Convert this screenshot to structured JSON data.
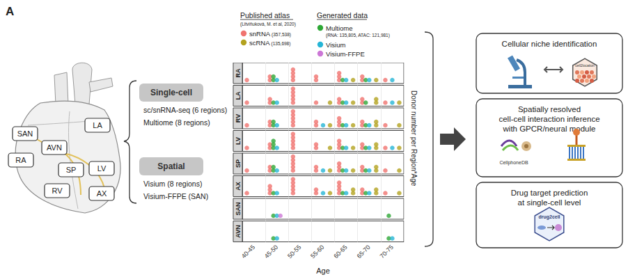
{
  "panel_label": "A",
  "heart": {
    "labels": [
      "SAN",
      "LA",
      "AVN",
      "RA",
      "SP",
      "LV",
      "RV",
      "AX"
    ]
  },
  "modalities": [
    {
      "title": "Single-cell",
      "lines": [
        "sc/snRNA-seq (6 regions)",
        "Multiome (8 regions)"
      ]
    },
    {
      "title": "Spatial",
      "lines": [
        "Visium (8 regions)",
        "Visium-FFPE (SAN)"
      ]
    }
  ],
  "chart_data": {
    "type": "dot",
    "legend_groups": [
      {
        "title": "Published atlas",
        "subtitle": "(Litviňuková, M. et al, 2020)"
      },
      {
        "title": "Generated data"
      }
    ],
    "categories": [
      "40-45",
      "45-50",
      "50-55",
      "55-60",
      "60-65",
      "65-70",
      "70-75"
    ],
    "facets": [
      "RA",
      "LA",
      "RV",
      "LV",
      "SP",
      "AX",
      "SAN",
      "AVN"
    ],
    "x_label": "Age",
    "y_label": "Donor number per Region*Age",
    "ylim": [
      0,
      6
    ],
    "tick_labels": "x",
    "grid": true,
    "series": [
      {
        "name": "snRNA",
        "detail": "(357,538)",
        "group": "Published atlas",
        "color": "#f0736f",
        "values": [
          [
            1,
            2,
            4,
            2,
            3,
            2,
            1
          ],
          [
            1,
            2,
            5,
            1,
            2,
            2,
            1
          ],
          [
            1,
            2,
            5,
            2,
            3,
            2,
            1
          ],
          [
            1,
            2,
            5,
            2,
            3,
            2,
            1
          ],
          [
            1,
            2,
            5,
            2,
            3,
            2,
            1
          ],
          [
            1,
            3,
            5,
            2,
            4,
            2,
            1
          ],
          [
            0,
            0,
            0,
            0,
            0,
            0,
            0
          ],
          [
            0,
            0,
            0,
            0,
            0,
            0,
            0
          ]
        ]
      },
      {
        "name": "scRNA",
        "detail": "(135,698)",
        "group": "Published atlas",
        "color": "#b3a21f",
        "values": [
          [
            0,
            0,
            0,
            0,
            1,
            1,
            0
          ],
          [
            0,
            0,
            0,
            1,
            1,
            2,
            1
          ],
          [
            0,
            0,
            0,
            1,
            1,
            2,
            1
          ],
          [
            0,
            0,
            0,
            1,
            1,
            2,
            1
          ],
          [
            0,
            0,
            0,
            1,
            1,
            2,
            1
          ],
          [
            0,
            0,
            0,
            1,
            2,
            2,
            1
          ],
          [
            0,
            0,
            0,
            0,
            0,
            0,
            0
          ],
          [
            0,
            0,
            0,
            0,
            0,
            0,
            0
          ]
        ]
      },
      {
        "name": "Multiome",
        "detail": "(RNA: 135,805, ATAC: 121,981)",
        "group": "Generated data",
        "color": "#2ea836",
        "values": [
          [
            0,
            2,
            0,
            0,
            1,
            1,
            0
          ],
          [
            0,
            1,
            0,
            0,
            1,
            1,
            0
          ],
          [
            0,
            2,
            0,
            0,
            1,
            1,
            0
          ],
          [
            0,
            3,
            0,
            0,
            1,
            1,
            0
          ],
          [
            0,
            2,
            0,
            0,
            1,
            1,
            0
          ],
          [
            0,
            1,
            0,
            0,
            1,
            1,
            0
          ],
          [
            0,
            1,
            0,
            0,
            0,
            0,
            1
          ],
          [
            0,
            1,
            0,
            0,
            0,
            0,
            1
          ]
        ]
      },
      {
        "name": "Visium",
        "group": "Generated data",
        "color": "#26b5d6",
        "values": [
          [
            0,
            1,
            0,
            0,
            1,
            1,
            1
          ],
          [
            0,
            1,
            0,
            0,
            1,
            0,
            1
          ],
          [
            0,
            1,
            0,
            1,
            1,
            1,
            0
          ],
          [
            0,
            1,
            0,
            0,
            1,
            1,
            1
          ],
          [
            0,
            1,
            0,
            1,
            1,
            1,
            0
          ],
          [
            0,
            1,
            0,
            1,
            1,
            1,
            0
          ],
          [
            0,
            1,
            0,
            0,
            0,
            0,
            0
          ],
          [
            0,
            1,
            0,
            0,
            0,
            0,
            1
          ]
        ]
      },
      {
        "name": "Visium-FFPE",
        "group": "Generated data",
        "color": "#cc77d6",
        "values": [
          [
            0,
            0,
            0,
            0,
            0,
            0,
            0
          ],
          [
            0,
            0,
            0,
            0,
            0,
            0,
            0
          ],
          [
            0,
            0,
            0,
            0,
            0,
            0,
            0
          ],
          [
            0,
            0,
            0,
            0,
            0,
            0,
            0
          ],
          [
            0,
            0,
            0,
            0,
            0,
            0,
            0
          ],
          [
            0,
            0,
            0,
            0,
            0,
            0,
            0
          ],
          [
            0,
            1,
            0,
            0,
            0,
            0,
            0
          ],
          [
            0,
            0,
            0,
            0,
            0,
            0,
            0
          ]
        ]
      }
    ]
  },
  "analyses": [
    {
      "title": [
        "Cellular niche identification"
      ],
      "icon_text": "cell2location"
    },
    {
      "title": [
        "Spatially resolved",
        "cell-cell interaction inference",
        "with GPCR/neural module"
      ],
      "icon_text": "CellphoneDB"
    },
    {
      "title": [
        "Drug target prediction",
        "at single-cell level"
      ],
      "icon_text": "drug2cell"
    }
  ]
}
